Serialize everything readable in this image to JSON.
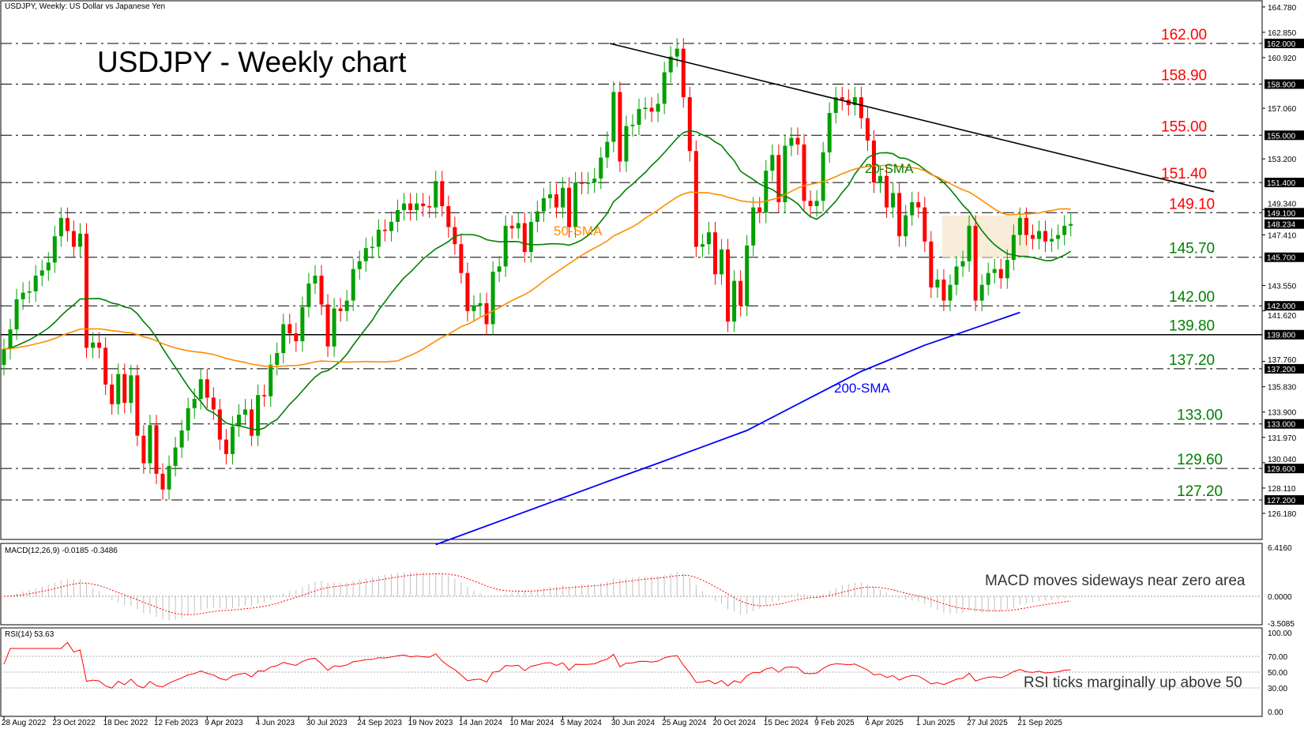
{
  "header": "USDJPY, Weekly:  US Dollar vs Japanese Yen",
  "title": "USDJPY - Weekly chart",
  "colors": {
    "bull": "#00a000",
    "bear": "#ff0000",
    "sma20": "#008000",
    "sma50": "#ff8c00",
    "sma200": "#0000ff",
    "resistance": "#ff0000",
    "support": "#008000",
    "macd_signal": "#ff0000",
    "macd_hist": "#c0c0c0",
    "rsi": "#ff0000"
  },
  "chart_data": {
    "type": "candlestick",
    "x_ticks": [
      "28 Aug 2022",
      "23 Oct 2022",
      "18 Dec 2022",
      "12 Feb 2023",
      "9 Apr 2023",
      "4 Jun 2023",
      "30 Jul 2023",
      "24 Sep 2023",
      "19 Nov 2023",
      "14 Jan 2024",
      "10 Mar 2024",
      "5 May 2024",
      "30 Jun 2024",
      "25 Aug 2024",
      "20 Oct 2024",
      "15 Dec 2024",
      "9 Feb 2025",
      "6 Apr 2025",
      "1 Jun 2025",
      "27 Jul 2025",
      "21 Sep 2025"
    ],
    "y_ticks": [
      "164.780",
      "162.850",
      "160.920",
      "157.060",
      "153.200",
      "149.340",
      "147.410",
      "143.550",
      "141.620",
      "137.760",
      "135.830",
      "133.900",
      "131.970",
      "130.040",
      "128.110",
      "126.180"
    ],
    "ylim": [
      124.0,
      165.2
    ],
    "weekly_close": [
      138.7,
      140.2,
      142.5,
      143.0,
      143.1,
      144.3,
      144.7,
      145.3,
      147.3,
      148.7,
      147.7,
      146.5,
      147.5,
      138.8,
      139.2,
      138.8,
      136.0,
      134.5,
      136.8,
      134.6,
      136.7,
      132.1,
      130.0,
      132.9,
      129.2,
      128.0,
      129.8,
      131.2,
      132.5,
      134.2,
      134.9,
      136.4,
      135.0,
      134.1,
      131.8,
      130.7,
      132.8,
      133.7,
      134.1,
      132.1,
      135.2,
      135.1,
      137.5,
      138.4,
      140.6,
      139.9,
      139.3,
      141.9,
      143.7,
      144.3,
      142.1,
      138.9,
      141.8,
      141.6,
      142.4,
      144.8,
      145.4,
      146.4,
      146.5,
      147.8,
      147.7,
      148.4,
      149.3,
      149.8,
      149.3,
      149.8,
      149.6,
      149.5,
      151.5,
      149.6,
      148.0,
      146.7,
      144.5,
      141.6,
      142.0,
      142.2,
      140.6,
      144.6,
      145.0,
      148.1,
      147.9,
      148.3,
      146.1,
      148.4,
      149.2,
      150.2,
      150.5,
      149.5,
      151.0,
      148.0,
      151.4,
      151.3,
      151.4,
      151.7,
      153.3,
      154.5,
      158.3,
      153.0,
      155.7,
      155.8,
      157.0,
      157.1,
      156.8,
      157.4,
      159.8,
      161.0,
      161.6,
      157.9,
      153.8,
      146.5,
      146.7,
      147.6,
      144.4,
      146.3,
      140.8,
      143.9,
      142.0,
      146.6,
      149.5,
      149.1,
      152.3,
      153.5,
      149.9,
      154.2,
      154.8,
      154.3,
      150.0,
      149.6,
      150.0,
      153.7,
      156.7,
      157.9,
      157.7,
      157.3,
      157.9,
      156.3,
      154.6,
      151.4,
      151.9,
      149.5,
      150.6,
      147.3,
      148.9,
      149.9,
      149.5,
      146.9,
      143.4,
      144.0,
      142.4,
      143.6,
      145.0,
      145.4,
      148.1,
      142.4,
      143.6,
      144.5,
      144.8,
      144.1,
      145.5,
      147.4,
      148.7,
      147.4,
      147.1,
      147.7,
      146.9,
      147.1,
      147.4,
      148.1,
      148.234
    ],
    "last_price": "148.234",
    "levels": [
      {
        "value": 162.0,
        "label": "162.00",
        "axis": "162.000",
        "kind": "resistance"
      },
      {
        "value": 158.9,
        "label": "158.90",
        "axis": "158.900",
        "kind": "resistance"
      },
      {
        "value": 155.0,
        "label": "155.00",
        "axis": "155.000",
        "kind": "resistance"
      },
      {
        "value": 151.4,
        "label": "151.40",
        "axis": "151.400",
        "kind": "resistance"
      },
      {
        "value": 149.1,
        "label": "149.10",
        "axis": "149.100",
        "kind": "resistance"
      },
      {
        "value": 145.7,
        "label": "145.70",
        "axis": "145.700",
        "kind": "support"
      },
      {
        "value": 142.0,
        "label": "142.00",
        "axis": "142.000",
        "kind": "support"
      },
      {
        "value": 139.8,
        "label": "139.80",
        "axis": "139.800",
        "kind": "support",
        "solid": true
      },
      {
        "value": 137.2,
        "label": "137.20",
        "axis": "137.200",
        "kind": "support"
      },
      {
        "value": 133.0,
        "label": "133.00",
        "axis": "133.000",
        "kind": "support"
      },
      {
        "value": 129.6,
        "label": "129.60",
        "axis": "129.600",
        "kind": "support"
      },
      {
        "value": 127.2,
        "label": "127.20",
        "axis": "127.200",
        "kind": "support"
      }
    ],
    "trendline": {
      "from": {
        "date": "30 Jun 2024",
        "value": 162.0
      },
      "to": {
        "date": "after 21 Sep 2025",
        "value": 150.7
      }
    },
    "sma_labels": {
      "sma20": "20-SMA",
      "sma50": "50-SMA",
      "sma200": "200-SMA"
    },
    "sma200_points": [
      [
        68,
        123.8
      ],
      [
        95,
        128.6
      ],
      [
        103,
        130.0
      ],
      [
        117,
        132.5
      ],
      [
        127,
        135.0
      ],
      [
        135,
        137.0
      ],
      [
        145,
        139.0
      ],
      [
        160,
        141.5
      ]
    ],
    "macd": {
      "label": "MACD(12,26,9) -0.0185 -0.3486",
      "y_ticks": [
        "6.4160",
        "0.0000",
        "-3.5085"
      ],
      "ylim": [
        -3.5085,
        6.416
      ],
      "note": "MACD moves sideways near zero area"
    },
    "rsi": {
      "label": "RSI(14) 53.63",
      "y_ticks": [
        "100.00",
        "70.00",
        "50.00",
        "30.00",
        "0.00"
      ],
      "levels": [
        70,
        50,
        30
      ],
      "note": "RSI ticks marginally up above 50"
    }
  }
}
